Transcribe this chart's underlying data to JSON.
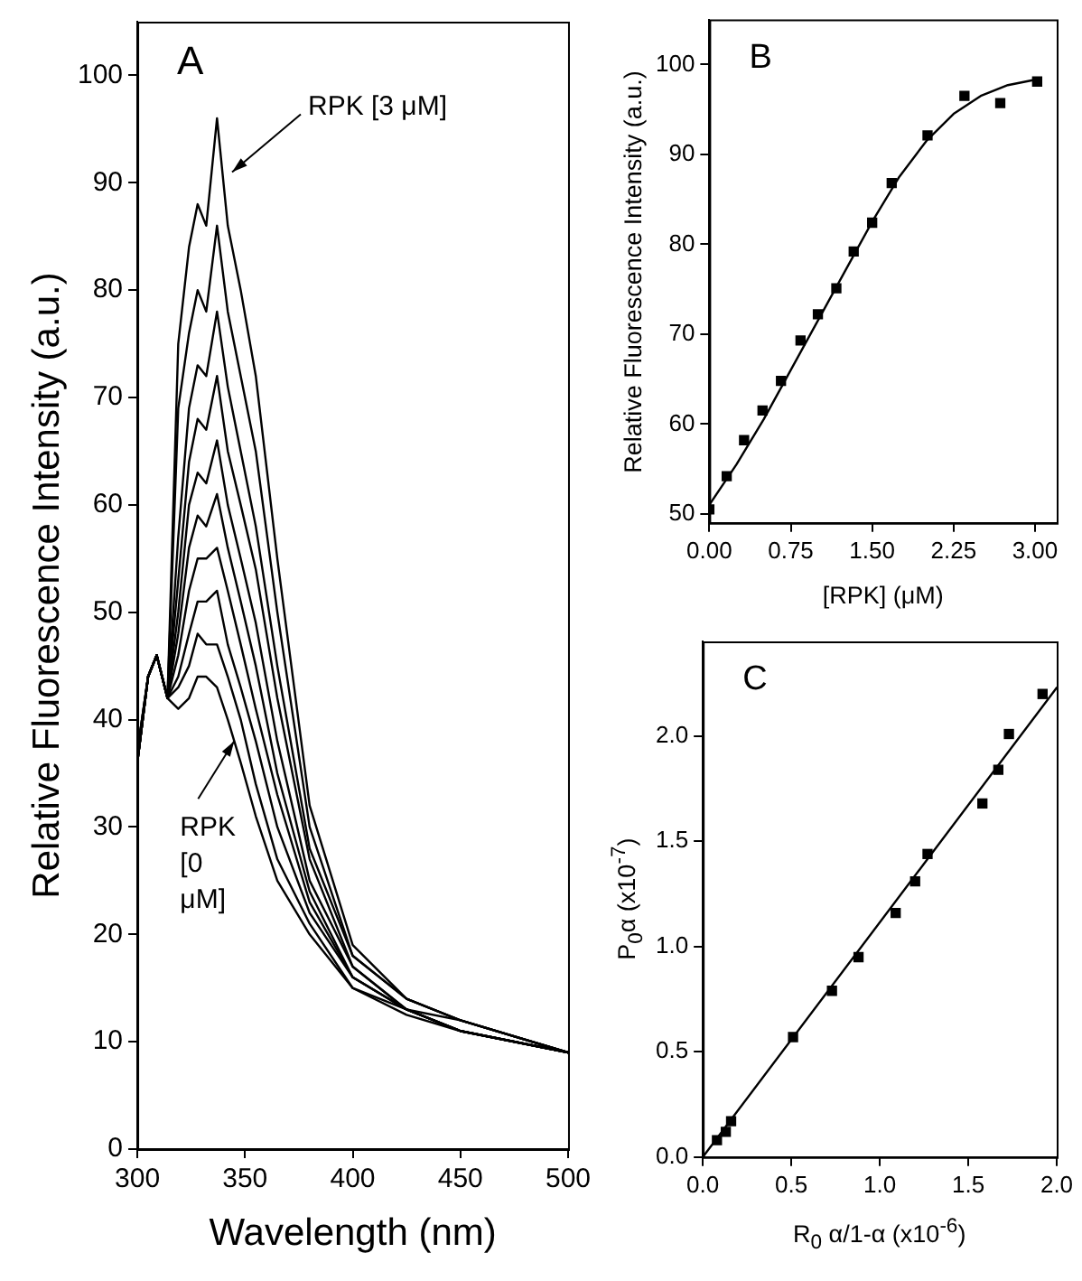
{
  "chart_data": [
    {
      "type": "line",
      "xlabel": "Wavelength (nm)",
      "ylabel": "Relative Fluorescence Intensity (a.u.)",
      "annotations": [
        "A",
        {
          "text": "RPK [3 μM]",
          "x": 344,
          "y": 91
        },
        {
          "text": "RPK [0 μM]",
          "x": 345,
          "y": 38
        }
      ],
      "xlim": [
        300,
        500
      ],
      "xticks": [
        300,
        350,
        400,
        450,
        500
      ],
      "ylim": [
        0,
        105
      ],
      "yticks": [
        0,
        10,
        20,
        30,
        40,
        50,
        60,
        70,
        80,
        90,
        100
      ],
      "x": [
        300,
        305,
        309,
        314,
        319,
        324,
        328,
        332,
        337,
        342,
        348,
        355,
        365,
        380,
        400,
        425,
        450,
        500
      ],
      "series": [
        {
          "color": "#000000",
          "values": [
            36,
            44,
            46,
            42,
            41,
            42,
            44,
            44,
            43,
            40,
            36,
            31,
            25,
            20,
            15,
            12.5,
            11,
            9
          ]
        },
        {
          "color": "#000000",
          "values": [
            36,
            44,
            46,
            42,
            43,
            45,
            48,
            47,
            47,
            44,
            40,
            34,
            27,
            21,
            15,
            13,
            11,
            9
          ]
        },
        {
          "color": "#000000",
          "values": [
            36,
            44,
            46,
            42,
            44,
            48,
            51,
            51,
            52,
            47,
            43,
            38,
            30,
            22,
            16,
            13,
            11,
            9
          ]
        },
        {
          "color": "#000000",
          "values": [
            36,
            44,
            46,
            42,
            46,
            52,
            55,
            55,
            56,
            52,
            47,
            41,
            33,
            23,
            16,
            13,
            11,
            9
          ]
        },
        {
          "color": "#000000",
          "values": [
            36,
            44,
            46,
            42,
            48,
            56,
            59,
            58,
            61,
            56,
            51,
            45,
            35,
            24,
            16,
            13,
            11,
            9
          ]
        },
        {
          "color": "#000000",
          "values": [
            36,
            44,
            46,
            42,
            50,
            60,
            63,
            62,
            66,
            60,
            55,
            49,
            38,
            25,
            17,
            13,
            11,
            9
          ]
        },
        {
          "color": "#000000",
          "values": [
            36,
            44,
            46,
            42,
            53,
            64,
            68,
            67,
            72,
            65,
            60,
            54,
            42,
            27,
            17,
            13,
            12,
            9
          ]
        },
        {
          "color": "#000000",
          "values": [
            37,
            44,
            46,
            42,
            57,
            69,
            73,
            72,
            78,
            71,
            65,
            58,
            45,
            28,
            18,
            14,
            12,
            9
          ]
        },
        {
          "color": "#000000",
          "values": [
            37,
            44,
            46,
            42,
            69,
            76,
            80,
            78,
            86,
            78,
            72,
            65,
            50,
            30,
            18,
            14,
            12,
            9
          ]
        },
        {
          "color": "#000000",
          "values": [
            37,
            44,
            46,
            42,
            75,
            84,
            88,
            86,
            96,
            86,
            80,
            72,
            55,
            32,
            19,
            14,
            12,
            9
          ]
        }
      ]
    },
    {
      "type": "scatter",
      "xlabel": "[RPK] (μM)",
      "ylabel": "Relative Fluorescence Intensity (a.u.)",
      "annotations": [
        "B"
      ],
      "xlim": [
        0,
        3.2
      ],
      "xticks": [
        {
          "value": 0,
          "label": "0.00"
        },
        {
          "value": 0.75,
          "label": "0.75"
        },
        {
          "value": 1.5,
          "label": "1.50"
        },
        {
          "value": 2.25,
          "label": "2.25"
        },
        {
          "value": 3,
          "label": "3.00"
        }
      ],
      "ylim": [
        49,
        105
      ],
      "yticks": [
        50,
        60,
        70,
        80,
        90,
        100
      ],
      "series": [
        {
          "marker": "square",
          "color": "#000000",
          "x": [
            0,
            0.16,
            0.32,
            0.49,
            0.66,
            0.84,
            1.0,
            1.17,
            1.33,
            1.5,
            1.68,
            2.01,
            2.35,
            2.68,
            3.02
          ],
          "values": [
            50.5,
            54.2,
            58.2,
            61.5,
            64.8,
            69.3,
            72.2,
            75.1,
            79.2,
            82.4,
            86.8,
            92.1,
            96.5,
            95.7,
            98.1
          ]
        },
        {
          "type": "line",
          "color": "#000000",
          "x": [
            0,
            0.25,
            0.5,
            0.75,
            1.0,
            1.25,
            1.5,
            1.75,
            2.0,
            2.25,
            2.5,
            2.75,
            3.0
          ],
          "values": [
            51,
            55.5,
            60.5,
            66,
            71.5,
            77,
            82.5,
            87.5,
            91.5,
            94.5,
            96.5,
            97.7,
            98.3
          ]
        }
      ]
    },
    {
      "type": "scatter",
      "xlabel": "R$_{0}$ α/1-α (x10$^{-6}$)",
      "ylabel": "P$_{0}$α (x10$^{-7}$)",
      "annotations": [
        "C"
      ],
      "xlim": [
        0,
        2
      ],
      "xticks": [
        {
          "value": 0,
          "label": "0.0"
        },
        0.5,
        {
          "value": 1,
          "label": "1.0"
        },
        1.5,
        {
          "value": 2,
          "label": "2.0"
        }
      ],
      "ylim": [
        0,
        2.45
      ],
      "yticks": [
        {
          "value": 0,
          "label": "0.0"
        },
        0.5,
        {
          "value": 1,
          "label": "1.0"
        },
        1.5,
        {
          "value": 2,
          "label": "2.0"
        }
      ],
      "series": [
        {
          "marker": "square",
          "color": "#000000",
          "x": [
            0.08,
            0.13,
            0.16,
            0.51,
            0.73,
            0.88,
            1.09,
            1.2,
            1.27,
            1.58,
            1.67,
            1.73,
            1.92
          ],
          "values": [
            0.08,
            0.12,
            0.17,
            0.57,
            0.79,
            0.95,
            1.16,
            1.31,
            1.44,
            1.68,
            1.84,
            2.01,
            2.2
          ]
        },
        {
          "type": "line",
          "color": "#000000",
          "x": [
            0,
            2
          ],
          "values": [
            0,
            2.23
          ]
        }
      ]
    }
  ]
}
